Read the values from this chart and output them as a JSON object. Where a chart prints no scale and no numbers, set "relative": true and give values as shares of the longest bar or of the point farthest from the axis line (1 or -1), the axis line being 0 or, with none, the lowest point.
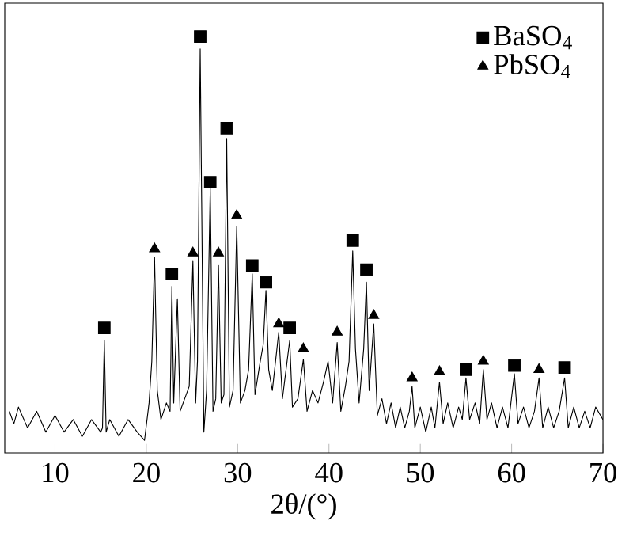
{
  "chart_data": {
    "type": "line",
    "relative": true,
    "xlabel": "2θ/(°)",
    "xlim": [
      4.5,
      70
    ],
    "xticks": [
      10,
      20,
      30,
      40,
      50,
      60,
      70
    ],
    "legend": "top right",
    "grid": false,
    "series": [
      {
        "color": "#000000",
        "marker": "none",
        "x": [
          5,
          5.5,
          6,
          7,
          8,
          9,
          10,
          11,
          12,
          13,
          14,
          15,
          15.2,
          15.4,
          15.6,
          16,
          17,
          18,
          19,
          19.8,
          20.3,
          20.6,
          20.9,
          21.2,
          21.6,
          22.2,
          22.6,
          22.8,
          23.0,
          23.4,
          23.7,
          24.2,
          24.7,
          25.1,
          25.4,
          25.6,
          25.9,
          26.3,
          26.6,
          27.0,
          27.3,
          27.6,
          27.9,
          28.2,
          28.5,
          28.8,
          29.1,
          29.5,
          29.9,
          30.3,
          30.8,
          31.2,
          31.6,
          31.9,
          32.4,
          32.8,
          33.1,
          33.4,
          33.8,
          34.5,
          34.9,
          35.7,
          36.0,
          36.6,
          37.2,
          37.6,
          38.2,
          38.8,
          39.4,
          39.9,
          40.4,
          40.9,
          41.3,
          41.8,
          42.2,
          42.6,
          42.9,
          43.3,
          43.8,
          44.1,
          44.4,
          44.9,
          45.3,
          45.8,
          46.3,
          46.8,
          47.3,
          47.8,
          48.3,
          48.8,
          49.1,
          49.4,
          50.0,
          50.6,
          51.2,
          51.6,
          52.1,
          52.5,
          53.0,
          53.6,
          54.2,
          54.6,
          55.0,
          55.4,
          56.0,
          56.5,
          56.9,
          57.3,
          57.8,
          58.4,
          59.0,
          59.6,
          60.3,
          60.7,
          61.3,
          61.9,
          62.5,
          63.0,
          63.4,
          64.0,
          64.6,
          65.2,
          65.8,
          66.2,
          66.8,
          67.4,
          68.0,
          68.6,
          69.2,
          70
        ],
        "values": [
          0.1,
          0.07,
          0.11,
          0.06,
          0.1,
          0.05,
          0.09,
          0.05,
          0.08,
          0.04,
          0.08,
          0.05,
          0.06,
          0.27,
          0.05,
          0.08,
          0.04,
          0.08,
          0.05,
          0.03,
          0.12,
          0.22,
          0.47,
          0.15,
          0.08,
          0.12,
          0.1,
          0.4,
          0.12,
          0.37,
          0.1,
          0.13,
          0.16,
          0.46,
          0.12,
          0.22,
          0.97,
          0.05,
          0.15,
          0.635,
          0.1,
          0.13,
          0.45,
          0.12,
          0.14,
          0.755,
          0.11,
          0.15,
          0.545,
          0.12,
          0.15,
          0.2,
          0.43,
          0.14,
          0.21,
          0.26,
          0.39,
          0.2,
          0.15,
          0.29,
          0.13,
          0.27,
          0.11,
          0.13,
          0.225,
          0.1,
          0.15,
          0.12,
          0.17,
          0.22,
          0.12,
          0.265,
          0.1,
          0.16,
          0.22,
          0.485,
          0.25,
          0.12,
          0.25,
          0.41,
          0.15,
          0.31,
          0.09,
          0.13,
          0.07,
          0.12,
          0.06,
          0.11,
          0.06,
          0.1,
          0.16,
          0.06,
          0.11,
          0.05,
          0.11,
          0.06,
          0.17,
          0.07,
          0.12,
          0.06,
          0.11,
          0.08,
          0.18,
          0.08,
          0.12,
          0.07,
          0.2,
          0.08,
          0.12,
          0.06,
          0.11,
          0.06,
          0.19,
          0.07,
          0.11,
          0.06,
          0.1,
          0.18,
          0.06,
          0.11,
          0.06,
          0.1,
          0.18,
          0.06,
          0.11,
          0.06,
          0.1,
          0.06,
          0.11,
          0.08
        ]
      },
      {
        "type": "scatter",
        "name": "BaSO$_{4}$",
        "color": "#000000",
        "marker": "square",
        "x": [
          15.4,
          22.8,
          25.9,
          27.0,
          28.8,
          31.6,
          33.1,
          35.7,
          42.6,
          44.1,
          55.0,
          60.3,
          65.8
        ],
        "values": [
          0.3,
          0.43,
          1.0,
          0.65,
          0.78,
          0.45,
          0.41,
          0.3,
          0.51,
          0.44,
          0.2,
          0.21,
          0.205
        ]
      },
      {
        "type": "scatter",
        "name": "PbSO$_{4}$",
        "color": "#000000",
        "marker": "triangle",
        "x": [
          20.9,
          25.1,
          27.9,
          29.9,
          34.5,
          37.2,
          40.9,
          44.9,
          49.1,
          52.1,
          56.9,
          63.0
        ],
        "values": [
          0.49,
          0.48,
          0.48,
          0.57,
          0.31,
          0.25,
          0.29,
          0.33,
          0.18,
          0.195,
          0.22,
          0.2
        ]
      }
    ]
  }
}
